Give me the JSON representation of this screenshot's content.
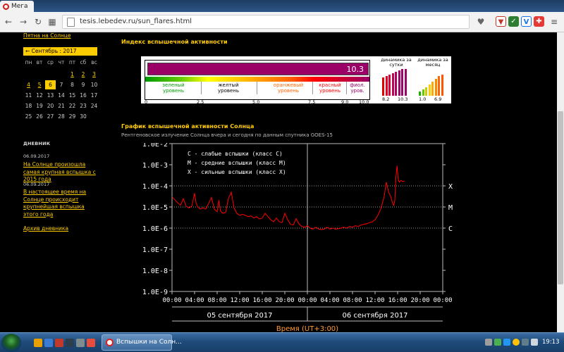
{
  "browser": {
    "tab_title": "Мега",
    "address": "tesis.lebedev.ru/sun_flares.html"
  },
  "sidebar": {
    "top_link": "Пятна на Солнце",
    "calendar": {
      "month_label": "←  Сентябрь : 2017",
      "weekdays": [
        "пн",
        "вт",
        "ср",
        "чт",
        "пт",
        "сб",
        "вс"
      ],
      "weeks": [
        [
          "",
          "",
          "",
          "",
          "1",
          "2",
          "3"
        ],
        [
          "4",
          "5",
          "6",
          "7",
          "8",
          "9",
          "10"
        ],
        [
          "11",
          "12",
          "13",
          "14",
          "15",
          "16",
          "17"
        ],
        [
          "18",
          "19",
          "20",
          "21",
          "22",
          "23",
          "24"
        ],
        [
          "25",
          "26",
          "27",
          "28",
          "29",
          "30",
          ""
        ]
      ],
      "link_days": [
        "1",
        "2",
        "3",
        "4",
        "5"
      ],
      "today": "6"
    },
    "diary_title": "ДНЕВНИК",
    "news": [
      {
        "date": "06.09.2017",
        "text": "На Солнце произошла самая крупная вспышка с 2015 года"
      },
      {
        "date": "06.09.2017",
        "text": "В настоящее время на Солнце происходит крупнейшая вспышка этого года"
      }
    ],
    "archive_link": "Архив дневника"
  },
  "index_panel": {
    "title": "Индекс вспышечной активности",
    "value": "10.3",
    "value_fraction": 1.03,
    "levels": [
      {
        "label": "зеленый уровень",
        "color": "#009900"
      },
      {
        "label": "желтый уровень",
        "color": "#000000"
      },
      {
        "label": "оранжевый уровень",
        "color": "#ff6600"
      },
      {
        "label": "красный уровень",
        "color": "#ff0000"
      },
      {
        "label": "фиол. уров.",
        "color": "#990066"
      }
    ],
    "ticks": [
      "0",
      "2.5",
      "5.0",
      "7.5",
      "9.0",
      "10.0"
    ],
    "day_dynamics": {
      "title": "динамика за сутки",
      "min": "8.2",
      "max": "10.3"
    },
    "month_dynamics": {
      "title": "динамика за месяц",
      "min": "1.0",
      "max": "6.9"
    }
  },
  "chart_section": {
    "title": "График вспышечной активности Солнца",
    "subtitle": "Рентгеновское излучение Солнца вчера и сегодня по данным спутника GOES-15"
  },
  "chart_data": {
    "type": "line",
    "yscale": "log",
    "ylim": [
      1e-09,
      0.01
    ],
    "ytick_labels": [
      "1.0E-2",
      "1.0E-3",
      "1.0E-4",
      "1.0E-5",
      "1.0E-6",
      "1.0E-7",
      "1.0E-8",
      "1.0E-9"
    ],
    "ytick_values": [
      0.01,
      0.001,
      0.0001,
      1e-05,
      1e-06,
      1e-07,
      1e-08,
      1e-09
    ],
    "xlim": [
      0,
      48
    ],
    "xtick_labels": [
      "00:00",
      "04:00",
      "08:00",
      "12:00",
      "16:00",
      "20:00",
      "00:00",
      "04:00",
      "08:00",
      "12:00",
      "16:00",
      "20:00",
      "00:00"
    ],
    "xtick_values": [
      0,
      4,
      8,
      12,
      16,
      20,
      24,
      28,
      32,
      36,
      40,
      44,
      48
    ],
    "day_labels": [
      "05 сентября 2017",
      "06 сентября 2017"
    ],
    "xlabel": "Время (UT+3:00)",
    "class_lines": [
      {
        "label": "X",
        "value": 0.0001
      },
      {
        "label": "M",
        "value": 1e-05
      },
      {
        "label": "C",
        "value": 1e-06
      }
    ],
    "legend": [
      "C - слабые вспышки (класс C)",
      "M - средние вспышки (класс M)",
      "X - сильные вспышки (класс X)"
    ],
    "series": [
      {
        "color": "#ff0000",
        "x": [
          0,
          0.5,
          1,
          1.5,
          2,
          2.5,
          3,
          3.5,
          4,
          4.3,
          4.6,
          5,
          5.5,
          6,
          6.5,
          7,
          7.5,
          8,
          8.3,
          8.6,
          9,
          9.5,
          10,
          10.5,
          11,
          11.5,
          12,
          12.5,
          13,
          13.5,
          14,
          14.5,
          15,
          15.5,
          16,
          16.5,
          17,
          17.5,
          18,
          18.5,
          19,
          19.5,
          20,
          20.5,
          21,
          21.5,
          22,
          22.5,
          23,
          23.5,
          24,
          24.5,
          25,
          25.5,
          26,
          26.5,
          27,
          27.5,
          28,
          28.5,
          29,
          29.5,
          30,
          30.5,
          31,
          31.5,
          32,
          32.5,
          33,
          33.5,
          34,
          34.5,
          35,
          35.5,
          36,
          36.5,
          37,
          37.3,
          37.6,
          38,
          38.4,
          38.8,
          39.1,
          39.3,
          39.5,
          39.7,
          39.9,
          40.1,
          40.3,
          40.6,
          40.9,
          41.2
        ],
        "y": [
          3e-05,
          2.2e-05,
          1.6e-05,
          1.2e-05,
          2.5e-05,
          1.1e-05,
          9e-06,
          1.1e-05,
          4.5e-05,
          1.4e-05,
          1e-05,
          8e-06,
          9e-06,
          8e-06,
          1.5e-05,
          2.8e-05,
          8e-06,
          6e-06,
          2.1e-05,
          6.5e-06,
          5e-06,
          5.5e-06,
          2.5e-05,
          5e-05,
          9e-06,
          5e-06,
          4e-06,
          4.5e-06,
          4e-06,
          3.5e-06,
          3.8e-06,
          3e-06,
          3.5e-06,
          2.7e-06,
          3e-06,
          5e-06,
          3.5e-06,
          2.5e-06,
          2e-06,
          3e-06,
          2e-06,
          1.8e-06,
          5e-06,
          2.5e-06,
          1.5e-06,
          1.4e-06,
          2.8e-06,
          1.6e-06,
          1.2e-06,
          1.1e-06,
          1.3e-06,
          1e-06,
          9e-07,
          1.1e-06,
          9e-07,
          8.5e-07,
          9e-07,
          1.1e-06,
          9e-07,
          1e-06,
          9e-07,
          9.5e-07,
          1e-06,
          1.1e-06,
          1e-06,
          1.2e-06,
          1.1e-06,
          1.3e-06,
          1.2e-06,
          1.4e-06,
          1.5e-06,
          1.6e-06,
          1.8e-06,
          2e-06,
          2.5e-06,
          4e-06,
          8e-06,
          1.5e-05,
          3e-05,
          0.00015,
          5e-05,
          3e-05,
          1.5e-05,
          1.2e-05,
          2e-05,
          0.00025,
          0.0009,
          0.0002,
          0.00015,
          0.00018,
          0.00016,
          0.00017
        ]
      }
    ]
  },
  "taskbar": {
    "window_label": "Вспышки на Солн...",
    "clock": "19:13"
  }
}
